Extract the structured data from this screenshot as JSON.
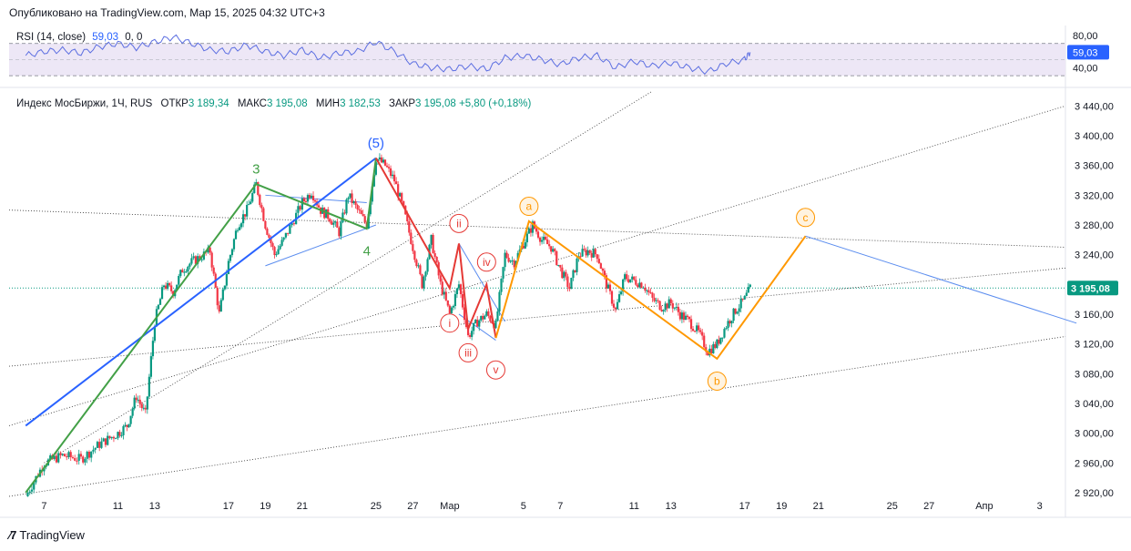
{
  "header": {
    "published": "Опубликовано на TradingView.com, Мар 15, 2025 04:32 UTC+3"
  },
  "rsi_legend": {
    "name": "RSI (14, close)",
    "value": "59,03",
    "zero": "0, 0"
  },
  "main_legend": {
    "symbol": "Индекс МосБиржи, 1Ч, RUS",
    "open_label": "ОТКР",
    "open": "3 189,34",
    "high_label": "МАКС",
    "high": "3 195,08",
    "low_label": "МИН",
    "low": "3 182,53",
    "close_label": "ЗАКР",
    "close": "3 195,08",
    "change": "+5,80 (+0,18%)"
  },
  "footer": {
    "brand": "TradingView"
  },
  "colors": {
    "up": "#089981",
    "down": "#f23645",
    "blue": "#2962ff",
    "green": "#43a047",
    "red": "#e53935",
    "orange": "#ff9800",
    "light_blue": "#5b8def",
    "rsi_band": "#ede7f6"
  },
  "chart_data": {
    "type": "candlestick",
    "title": "Индекс МосБиржи, 1Ч",
    "price_axis": {
      "ticks": [
        "3 440,00",
        "3 400,00",
        "3 360,00",
        "3 320,00",
        "3 280,00",
        "3 240,00",
        "3 200,00",
        "3 160,00",
        "3 120,00",
        "3 080,00",
        "3 040,00",
        "3 000,00",
        "2 960,00",
        "2 920,00"
      ],
      "tick_values": [
        3440,
        3400,
        3360,
        3320,
        3280,
        3240,
        3200,
        3160,
        3120,
        3080,
        3040,
        3000,
        2960,
        2920
      ],
      "range": [
        2915,
        3460
      ],
      "last_price": "3 195,08",
      "last_value": 3195.08
    },
    "rsi_axis": {
      "ticks": [
        "80,00",
        "40,00"
      ],
      "tick_values": [
        80,
        40
      ],
      "last": "59,03",
      "last_value": 59.03,
      "band": [
        30,
        70
      ]
    },
    "date_axis": {
      "labels": [
        "7",
        "11",
        "13",
        "17",
        "19",
        "21",
        "25",
        "27",
        "Мар",
        "5",
        "7",
        "11",
        "13",
        "17",
        "19",
        "21",
        "25",
        "27",
        "Апр",
        "3"
      ],
      "day_index": [
        7,
        11,
        13,
        17,
        19,
        21,
        25,
        27,
        29,
        33,
        35,
        39,
        41,
        45,
        47,
        49,
        53,
        55,
        58,
        61
      ]
    },
    "price_path": [
      [
        6,
        2915
      ],
      [
        7,
        2960
      ],
      [
        8,
        2970
      ],
      [
        9,
        2965
      ],
      [
        10,
        2985
      ],
      [
        11,
        3000
      ],
      [
        11.5,
        3010
      ],
      [
        12,
        3050
      ],
      [
        12.5,
        3025
      ],
      [
        13,
        3150
      ],
      [
        13.5,
        3200
      ],
      [
        14,
        3190
      ],
      [
        14.5,
        3220
      ],
      [
        15,
        3230
      ],
      [
        16,
        3245
      ],
      [
        16.5,
        3160
      ],
      [
        17,
        3230
      ],
      [
        17.5,
        3280
      ],
      [
        18,
        3300
      ],
      [
        18.5,
        3335
      ],
      [
        19,
        3280
      ],
      [
        19.5,
        3240
      ],
      [
        20,
        3260
      ],
      [
        21,
        3310
      ],
      [
        21.5,
        3325
      ],
      [
        22,
        3300
      ],
      [
        22.5,
        3290
      ],
      [
        23,
        3270
      ],
      [
        23.5,
        3320
      ],
      [
        24,
        3300
      ],
      [
        24.5,
        3280
      ],
      [
        25,
        3370
      ],
      [
        25.5,
        3360
      ],
      [
        26,
        3340
      ],
      [
        26.5,
        3300
      ],
      [
        27,
        3250
      ],
      [
        27.5,
        3200
      ],
      [
        28,
        3260
      ],
      [
        28.5,
        3200
      ],
      [
        29,
        3160
      ],
      [
        29.5,
        3200
      ],
      [
        30,
        3130
      ],
      [
        30.5,
        3150
      ],
      [
        31,
        3160
      ],
      [
        31.5,
        3145
      ],
      [
        32,
        3240
      ],
      [
        32.5,
        3230
      ],
      [
        33,
        3255
      ],
      [
        33.5,
        3280
      ],
      [
        34,
        3260
      ],
      [
        34.5,
        3250
      ],
      [
        35,
        3220
      ],
      [
        35.5,
        3195
      ],
      [
        36,
        3240
      ],
      [
        36.5,
        3245
      ],
      [
        37,
        3240
      ],
      [
        37.5,
        3200
      ],
      [
        38,
        3165
      ],
      [
        38.5,
        3210
      ],
      [
        39,
        3205
      ],
      [
        39.5,
        3200
      ],
      [
        40,
        3180
      ],
      [
        40.5,
        3170
      ],
      [
        41,
        3175
      ],
      [
        41.5,
        3160
      ],
      [
        42,
        3150
      ],
      [
        42.5,
        3135
      ],
      [
        43,
        3110
      ],
      [
        43.5,
        3120
      ],
      [
        44,
        3145
      ],
      [
        44.5,
        3165
      ],
      [
        45,
        3180
      ],
      [
        45.3,
        3195
      ]
    ],
    "rsi_path": [
      [
        6,
        55
      ],
      [
        7,
        60
      ],
      [
        8,
        62
      ],
      [
        9,
        58
      ],
      [
        10,
        66
      ],
      [
        11,
        70
      ],
      [
        12,
        65
      ],
      [
        13,
        72
      ],
      [
        14,
        78
      ],
      [
        15,
        70
      ],
      [
        16,
        62
      ],
      [
        17,
        60
      ],
      [
        18,
        68
      ],
      [
        19,
        60
      ],
      [
        20,
        55
      ],
      [
        21,
        62
      ],
      [
        22,
        52
      ],
      [
        23,
        58
      ],
      [
        24,
        60
      ],
      [
        25,
        72
      ],
      [
        26,
        60
      ],
      [
        27,
        45
      ],
      [
        28,
        40
      ],
      [
        29,
        38
      ],
      [
        30,
        42
      ],
      [
        31,
        38
      ],
      [
        32,
        52
      ],
      [
        33,
        55
      ],
      [
        34,
        50
      ],
      [
        35,
        44
      ],
      [
        36,
        52
      ],
      [
        37,
        55
      ],
      [
        38,
        40
      ],
      [
        39,
        48
      ],
      [
        40,
        42
      ],
      [
        41,
        46
      ],
      [
        42,
        40
      ],
      [
        43,
        35
      ],
      [
        44,
        45
      ],
      [
        45,
        50
      ],
      [
        45.3,
        59.03
      ]
    ],
    "wave_labels": [
      {
        "text": "3",
        "t": 18.5,
        "v": 3355,
        "color": "green"
      },
      {
        "text": "4",
        "t": 24.5,
        "v": 3245,
        "color": "green"
      },
      {
        "text": "(5)",
        "t": 25,
        "v": 3390,
        "color": "blue"
      },
      {
        "text": "i",
        "t": 29,
        "v": 3148,
        "color": "red"
      },
      {
        "text": "ii",
        "t": 29.5,
        "v": 3282,
        "color": "red"
      },
      {
        "text": "iii",
        "t": 30,
        "v": 3108,
        "color": "red"
      },
      {
        "text": "iv",
        "t": 31,
        "v": 3230,
        "color": "red"
      },
      {
        "text": "v",
        "t": 31.5,
        "v": 3085,
        "color": "red"
      },
      {
        "text": "a",
        "t": 33.3,
        "v": 3305,
        "color": "orange"
      },
      {
        "text": "b",
        "t": 43.5,
        "v": 3070,
        "color": "orange"
      },
      {
        "text": "c",
        "t": 48.3,
        "v": 3290,
        "color": "orange"
      }
    ],
    "wave_lines": [
      {
        "name": "blue-impulse",
        "color": "blue",
        "points": [
          [
            6,
            3010
          ],
          [
            25,
            3370
          ]
        ]
      },
      {
        "name": "green-wave",
        "color": "green",
        "points": [
          [
            6,
            2920
          ],
          [
            18.5,
            3335
          ],
          [
            24.5,
            3275
          ],
          [
            25,
            3370
          ]
        ]
      },
      {
        "name": "red-decline",
        "color": "red",
        "points": [
          [
            25,
            3370
          ],
          [
            29,
            3195
          ],
          [
            29.5,
            3255
          ],
          [
            30,
            3140
          ],
          [
            31,
            3200
          ],
          [
            31.5,
            3128
          ]
        ]
      },
      {
        "name": "orange-abc",
        "color": "orange",
        "points": [
          [
            31.5,
            3128
          ],
          [
            33.3,
            3285
          ],
          [
            43.5,
            3100
          ],
          [
            48.3,
            3265
          ]
        ]
      },
      {
        "name": "future-blue",
        "color": "light_blue",
        "points": [
          [
            48.3,
            3265
          ],
          [
            63,
            3148
          ]
        ]
      }
    ]
  }
}
